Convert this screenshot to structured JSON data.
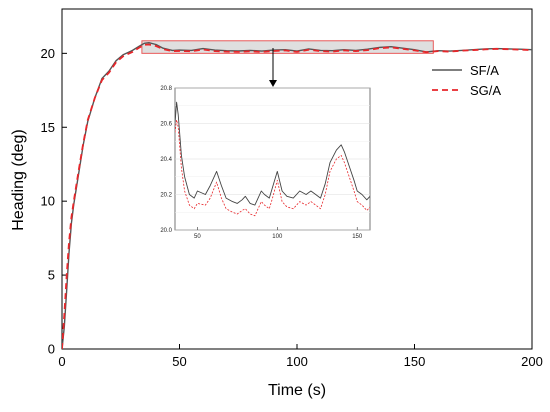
{
  "chart_data": {
    "type": "line",
    "xlabel": "Time (s)",
    "ylabel": "Heading (deg)",
    "xlim": [
      0,
      200
    ],
    "ylim": [
      0,
      23
    ],
    "xticks": [
      0,
      50,
      100,
      150,
      200
    ],
    "yticks": [
      0,
      5,
      10,
      15,
      20
    ],
    "grid": false,
    "legend": {
      "position": "top-right"
    },
    "series": [
      {
        "name": "SF/A",
        "color": "#555555",
        "style": "solid",
        "x": [
          0,
          1,
          2,
          3,
          4,
          5,
          7,
          9,
          11,
          14,
          17,
          20,
          23,
          26,
          30,
          33,
          35,
          37,
          40,
          43,
          47,
          50,
          55,
          60,
          65,
          70,
          75,
          80,
          85,
          90,
          95,
          100,
          105,
          110,
          115,
          120,
          125,
          130,
          135,
          140,
          145,
          150,
          155,
          160,
          165,
          170,
          175,
          180,
          185,
          190,
          195,
          200
        ],
        "y": [
          0,
          1.5,
          4,
          6.5,
          8.5,
          9.8,
          11.8,
          13.8,
          15.4,
          17.0,
          18.3,
          18.8,
          19.5,
          19.9,
          20.2,
          20.5,
          20.68,
          20.72,
          20.6,
          20.35,
          20.2,
          20.22,
          20.2,
          20.32,
          20.22,
          20.18,
          20.16,
          20.2,
          20.15,
          20.22,
          20.25,
          20.15,
          20.3,
          20.2,
          20.18,
          20.25,
          20.2,
          20.28,
          20.4,
          20.45,
          20.35,
          20.25,
          20.1,
          20.18,
          20.15,
          20.2,
          20.25,
          20.3,
          20.32,
          20.3,
          20.28,
          20.25
        ]
      },
      {
        "name": "SG/A",
        "color": "#e8262a",
        "style": "dashed",
        "x": [
          0,
          1,
          2,
          3,
          4,
          5,
          7,
          9,
          11,
          14,
          17,
          20,
          23,
          26,
          30,
          33,
          35,
          37,
          40,
          43,
          47,
          50,
          55,
          60,
          65,
          70,
          75,
          80,
          85,
          90,
          95,
          100,
          105,
          110,
          115,
          120,
          125,
          130,
          135,
          140,
          145,
          150,
          155,
          160,
          165,
          170,
          175,
          180,
          185,
          190,
          195,
          200
        ],
        "y": [
          0,
          2.3,
          5.0,
          7.2,
          8.9,
          10.0,
          12.0,
          13.9,
          15.5,
          17.0,
          18.2,
          18.7,
          19.4,
          19.8,
          20.1,
          20.4,
          20.58,
          20.6,
          20.5,
          20.28,
          20.15,
          20.16,
          20.14,
          20.26,
          20.15,
          20.12,
          20.1,
          20.14,
          20.1,
          20.16,
          20.2,
          20.1,
          20.25,
          20.15,
          20.12,
          20.2,
          20.15,
          20.22,
          20.35,
          20.4,
          20.3,
          20.2,
          20.08,
          20.15,
          20.12,
          20.18,
          20.22,
          20.27,
          20.3,
          20.28,
          20.25,
          20.22
        ]
      }
    ],
    "inset": {
      "xlim": [
        36,
        158
      ],
      "ylim": [
        20.0,
        20.8
      ],
      "xticks": [
        50,
        100,
        150
      ],
      "yticks": [
        20.0,
        20.2,
        20.4,
        20.6,
        20.8
      ],
      "grid": true,
      "series": [
        {
          "name": "SF/A",
          "x": [
            36,
            37,
            38,
            40,
            42,
            45,
            48,
            50,
            55,
            58,
            62,
            65,
            68,
            72,
            75,
            78,
            80,
            83,
            86,
            88,
            90,
            92,
            95,
            97,
            100,
            103,
            106,
            110,
            114,
            118,
            121,
            124,
            127,
            130,
            133,
            137,
            140,
            142,
            145,
            148,
            150,
            153,
            156,
            158
          ],
          "y": [
            20.6,
            20.72,
            20.65,
            20.42,
            20.3,
            20.2,
            20.18,
            20.22,
            20.2,
            20.25,
            20.33,
            20.25,
            20.18,
            20.16,
            20.15,
            20.17,
            20.19,
            20.15,
            20.14,
            20.18,
            20.22,
            20.2,
            20.18,
            20.24,
            20.33,
            20.22,
            20.19,
            20.18,
            20.22,
            20.2,
            20.22,
            20.2,
            20.18,
            20.26,
            20.38,
            20.45,
            20.48,
            20.44,
            20.36,
            20.28,
            20.22,
            20.2,
            20.17,
            20.19
          ]
        },
        {
          "name": "SG/A",
          "x": [
            36,
            37,
            38,
            40,
            42,
            45,
            48,
            50,
            55,
            58,
            62,
            65,
            68,
            72,
            75,
            78,
            80,
            83,
            86,
            88,
            90,
            92,
            95,
            97,
            100,
            103,
            106,
            110,
            114,
            118,
            121,
            124,
            127,
            130,
            133,
            137,
            140,
            142,
            145,
            148,
            150,
            153,
            156,
            158
          ],
          "y": [
            20.55,
            20.62,
            20.58,
            20.35,
            20.22,
            20.14,
            20.12,
            20.15,
            20.14,
            20.18,
            20.27,
            20.18,
            20.12,
            20.1,
            20.09,
            20.11,
            20.12,
            20.09,
            20.08,
            20.12,
            20.16,
            20.14,
            20.12,
            20.18,
            20.28,
            20.16,
            20.13,
            20.12,
            20.16,
            20.14,
            20.16,
            20.14,
            20.12,
            20.2,
            20.33,
            20.4,
            20.42,
            20.38,
            20.3,
            20.22,
            20.16,
            20.14,
            20.11,
            20.13
          ]
        }
      ]
    },
    "zoom_region": {
      "x": [
        34,
        158
      ],
      "y": [
        20.0,
        20.85
      ]
    }
  }
}
